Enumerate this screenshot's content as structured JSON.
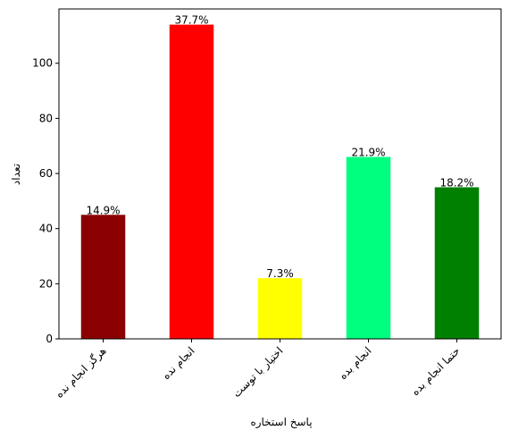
{
  "chart_data": {
    "type": "bar",
    "title": "",
    "xlabel": "پاسخ استخاره",
    "ylabel": "تعداد",
    "categories": [
      "هرگز انجام نده",
      "انجام نده",
      "اختیار با توست",
      "انجام بده",
      "حتما انجام بده"
    ],
    "values": [
      45,
      114,
      22,
      66,
      55
    ],
    "data_labels": [
      "14.9%",
      "37.7%",
      "7.3%",
      "21.9%",
      "18.2%"
    ],
    "colors": [
      "#8b0000",
      "#ff0000",
      "#ffff00",
      "#00ff7f",
      "#008000"
    ],
    "ylim": [
      0,
      119.7
    ],
    "yticks": [
      0,
      20,
      40,
      60,
      80,
      100
    ],
    "grid": false,
    "legend": "none"
  }
}
